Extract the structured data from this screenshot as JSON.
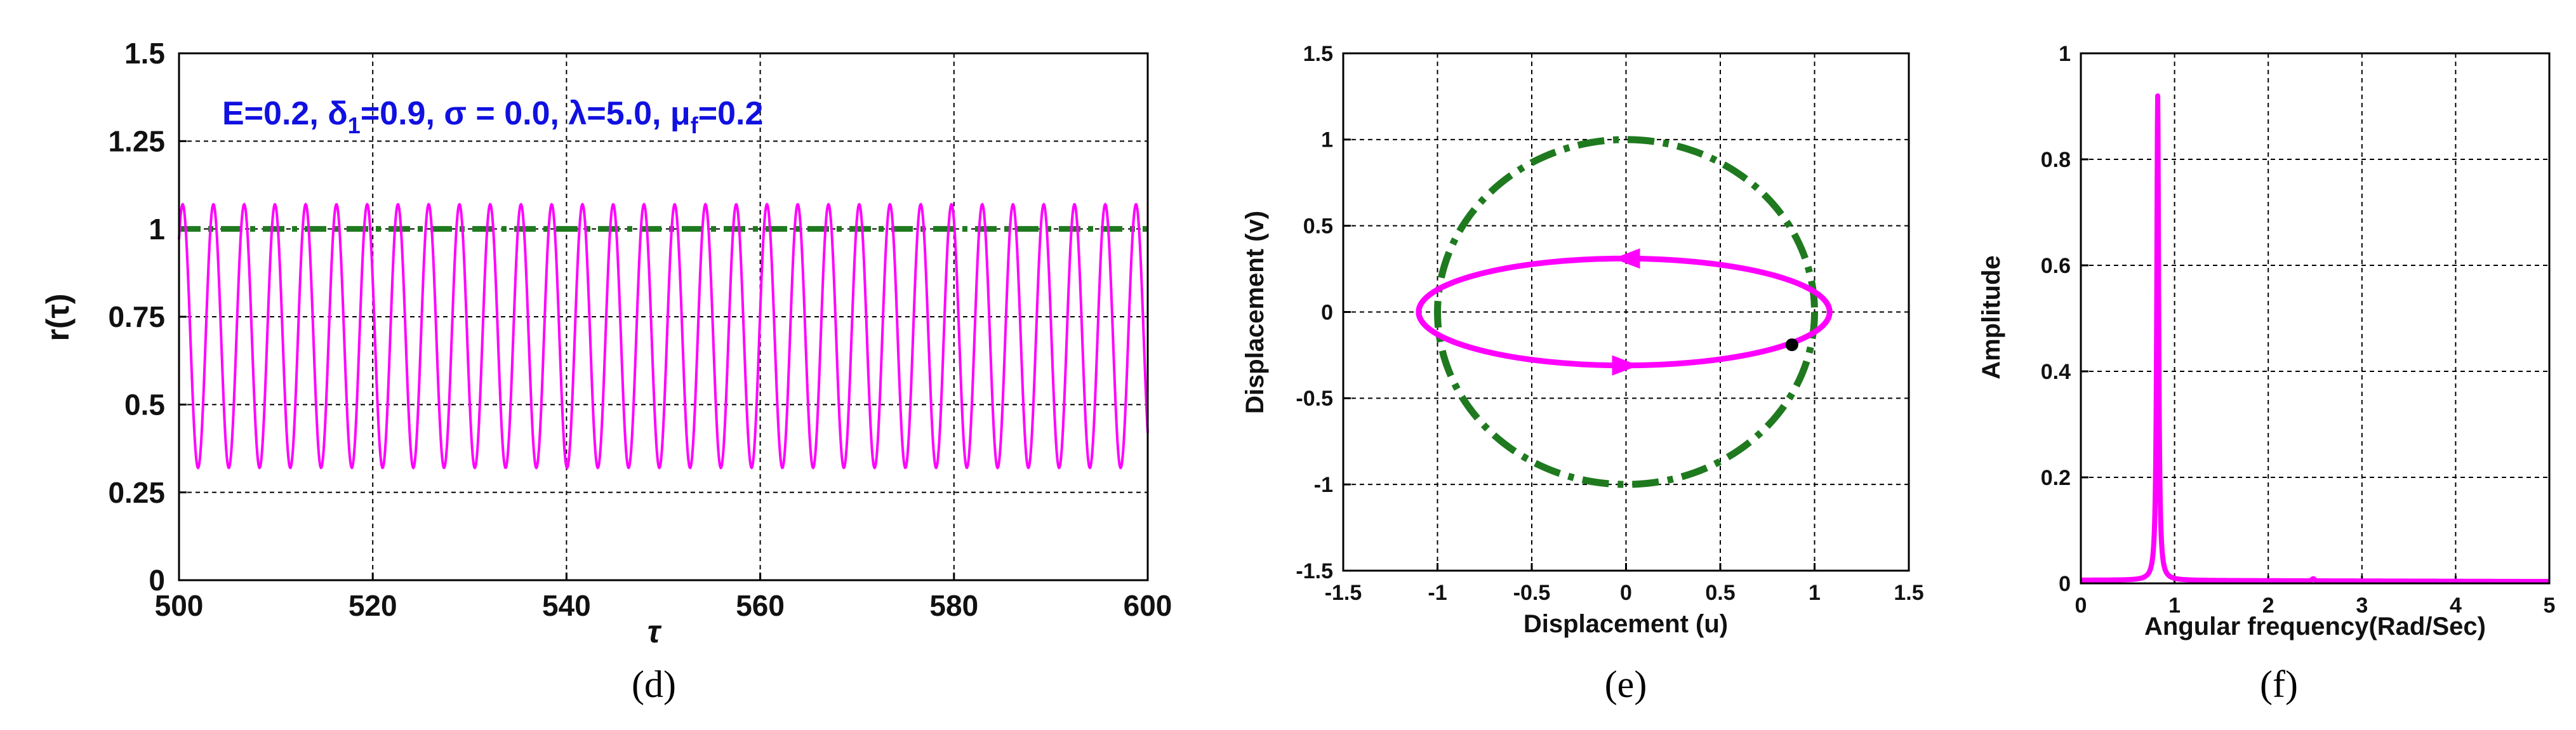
{
  "colors": {
    "magenta": "#ff00ff",
    "green": "#1f7a1f",
    "annotation": "#1010e0",
    "grid": "#000000"
  },
  "chart_data": [
    {
      "panel": "d",
      "type": "line",
      "caption": "(d)",
      "xlabel": "τ",
      "ylabel": "r(τ)",
      "xlim": [
        500,
        600
      ],
      "ylim": [
        0,
        1.5
      ],
      "xticks": [
        "500",
        "520",
        "540",
        "560",
        "580",
        "600"
      ],
      "yticks": [
        "0",
        "0.25",
        "0.5",
        "0.75",
        "1",
        "1.25",
        "1.5"
      ],
      "annotation": {
        "prefix": "E=0.2, ",
        "delta": "δ",
        "delta_sub": "1",
        "delta_val": "=0.9, ",
        "sigma": "σ",
        "sigma_val": " = 0.0, ",
        "lambda": "λ",
        "lambda_val": "=5.0, ",
        "mu": "μ",
        "mu_sub": "f",
        "mu_val": "=0.2"
      },
      "series": [
        {
          "name": "r(τ)",
          "color": "#ff00ff",
          "style": "solid",
          "min": 0.32,
          "max": 1.07,
          "cycles": 31.5,
          "phase_start": 0.97
        },
        {
          "name": "reference",
          "color": "#1f7a1f",
          "style": "dash-dot",
          "value": 1.0
        }
      ]
    },
    {
      "panel": "e",
      "type": "line",
      "caption": "(e)",
      "xlabel": "Displacement (u)",
      "ylabel": "Displacement (v)",
      "xlim": [
        -1.5,
        1.5
      ],
      "ylim": [
        -1.5,
        1.5
      ],
      "xticks": [
        "-1.5",
        "-1",
        "-0.5",
        "0",
        "0.5",
        "1",
        "1.5"
      ],
      "yticks": [
        "-1.5",
        "-1",
        "-0.5",
        "0",
        "0.5",
        "1",
        "1.5"
      ],
      "series": [
        {
          "name": "unit circle",
          "color": "#1f7a1f",
          "style": "dash-dot",
          "radius": 1.0
        },
        {
          "name": "orbit",
          "color": "#ff00ff",
          "style": "solid",
          "u_left": -1.1,
          "u_right": 1.08,
          "v_top": 0.31,
          "v_bottom": -0.31
        }
      ],
      "point": {
        "u": 0.88,
        "v": -0.19
      }
    },
    {
      "panel": "f",
      "type": "line",
      "caption": "(f)",
      "xlabel": "Angular frequency(Rad/Sec)",
      "ylabel": "Amplitude",
      "xlim": [
        0,
        5
      ],
      "ylim": [
        0,
        1
      ],
      "xticks": [
        "0",
        "1",
        "2",
        "3",
        "4",
        "5"
      ],
      "yticks": [
        "0",
        "0.2",
        "0.4",
        "0.6",
        "0.8",
        "1"
      ],
      "series": [
        {
          "name": "spectrum",
          "color": "#ff00ff",
          "peak_x": 0.82,
          "peak_y": 0.92,
          "baseline": 0.006
        }
      ]
    }
  ]
}
